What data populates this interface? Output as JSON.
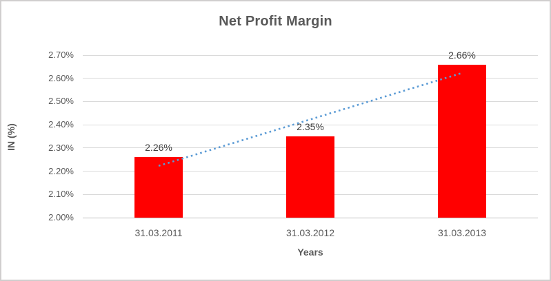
{
  "chart": {
    "title": "Net Profit Margin",
    "y_axis_title": "IN (%)",
    "x_axis_title": "Years"
  },
  "chart_data": {
    "type": "bar",
    "title": "Net Profit Margin",
    "xlabel": "Years",
    "ylabel": "IN (%)",
    "categories": [
      "31.03.2011",
      "31.03.2012",
      "31.03.2013"
    ],
    "values": [
      2.26,
      2.35,
      2.66
    ],
    "data_labels": [
      "2.26%",
      "2.35%",
      "2.66%"
    ],
    "ylim": [
      2.0,
      2.7
    ],
    "ytick_step": 0.1,
    "ytick_labels": [
      "2.00%",
      "2.10%",
      "2.20%",
      "2.30%",
      "2.40%",
      "2.50%",
      "2.60%",
      "2.70%"
    ],
    "grid": true,
    "legend": false,
    "bar_color": "#ff0000",
    "trendline": {
      "type": "linear",
      "style": "dotted",
      "color": "#5b9bd5",
      "start_value": 2.223,
      "end_value": 2.623
    }
  }
}
